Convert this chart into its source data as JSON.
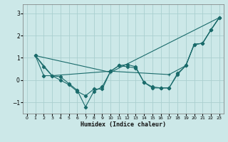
{
  "xlabel": "Humidex (Indice chaleur)",
  "background_color": "#cce8e8",
  "grid_color": "#aacfcf",
  "line_color": "#1a6b6b",
  "xlim": [
    -0.5,
    23.5
  ],
  "ylim": [
    -1.5,
    3.4
  ],
  "yticks": [
    -1,
    0,
    1,
    2,
    3
  ],
  "xticks": [
    0,
    1,
    2,
    3,
    4,
    5,
    6,
    7,
    8,
    9,
    10,
    11,
    12,
    13,
    14,
    15,
    16,
    17,
    18,
    19,
    20,
    21,
    22,
    23
  ],
  "line1_x": [
    1,
    2,
    3,
    4,
    5,
    6,
    7,
    8,
    9,
    10,
    11,
    12,
    13,
    14,
    15,
    16,
    17,
    18,
    19,
    20,
    21,
    22,
    23
  ],
  "line1_y": [
    1.1,
    0.6,
    0.2,
    0.0,
    -0.2,
    -0.5,
    -0.7,
    -0.4,
    -0.4,
    0.4,
    0.65,
    0.6,
    0.55,
    -0.1,
    -0.3,
    -0.35,
    -0.35,
    0.3,
    0.65,
    1.6,
    1.65,
    2.25,
    2.8
  ],
  "line2_x": [
    1,
    2,
    3,
    4,
    5,
    6,
    7,
    8,
    9,
    10,
    11,
    12,
    13,
    14,
    15,
    16,
    17,
    18,
    19,
    20,
    21,
    22,
    23
  ],
  "line2_y": [
    1.1,
    0.2,
    0.2,
    0.15,
    -0.15,
    -0.45,
    -1.2,
    -0.5,
    -0.3,
    0.4,
    0.65,
    0.7,
    0.6,
    -0.1,
    -0.35,
    -0.35,
    -0.35,
    0.25,
    0.65,
    1.6,
    1.65,
    2.25,
    2.8
  ],
  "line3_x": [
    1,
    10,
    23
  ],
  "line3_y": [
    1.1,
    0.35,
    2.8
  ],
  "line4_x": [
    1,
    3,
    10,
    17,
    19,
    20,
    21,
    22,
    23
  ],
  "line4_y": [
    1.1,
    0.2,
    0.4,
    0.25,
    0.65,
    1.6,
    1.65,
    2.25,
    2.8
  ]
}
